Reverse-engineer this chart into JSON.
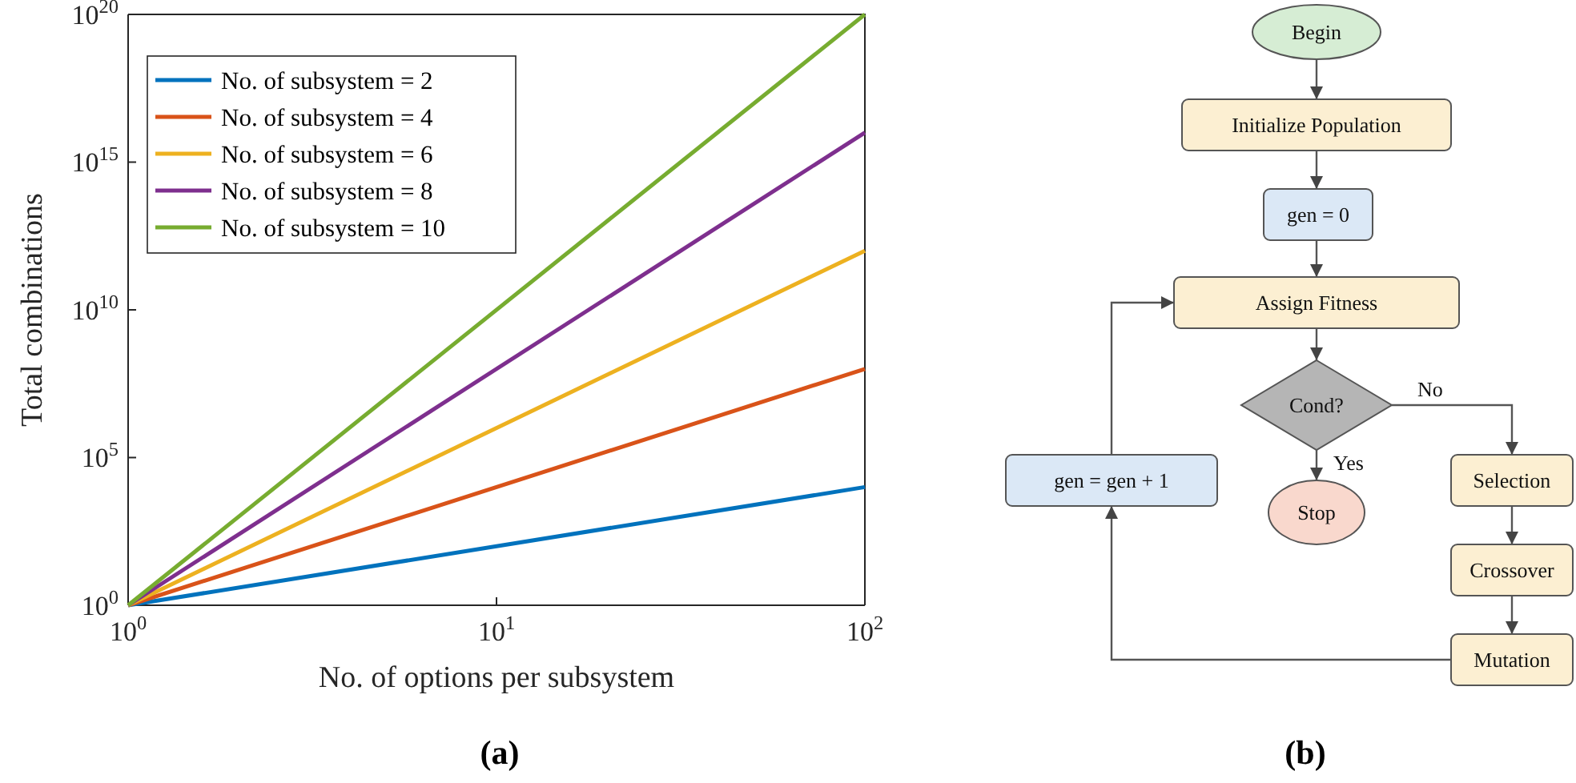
{
  "chart_data": [
    {
      "type": "line",
      "title": "(a)",
      "xlabel": "No. of options per subsystem",
      "ylabel": "Total combinations",
      "log": "xy",
      "x": [
        1,
        100
      ],
      "series": [
        {
          "name": "No. of subsystem = 2",
          "color": "#0072bd",
          "values": [
            1,
            10000
          ]
        },
        {
          "name": "No. of subsystem = 4",
          "color": "#d95319",
          "values": [
            1,
            100000000
          ]
        },
        {
          "name": "No. of subsystem = 6",
          "color": "#edb120",
          "values": [
            1,
            1000000000000
          ]
        },
        {
          "name": "No. of subsystem = 8",
          "color": "#7e2f8e",
          "values": [
            1,
            1e+16
          ]
        },
        {
          "name": "No. of subsystem = 10",
          "color": "#77ac30",
          "values": [
            1,
            1e+20
          ]
        }
      ],
      "xlim": [
        1,
        100
      ],
      "xticks": [
        {
          "value": 1,
          "label": "10$^{0}$"
        },
        {
          "value": 10,
          "label": "10$^{1}$"
        },
        {
          "value": 100,
          "label": "10$^{2}$"
        }
      ],
      "ylim": [
        1,
        1e+20
      ],
      "yticks": [
        {
          "value": 1,
          "label": "10$^{0}$"
        },
        {
          "value": 100000,
          "label": "10$^{5}$"
        },
        {
          "value": 10000000000,
          "label": "10$^{10}$"
        },
        {
          "value": 1000000000000000.0,
          "label": "10$^{15}$"
        },
        {
          "value": 1e+20,
          "label": "10$^{20}$"
        }
      ],
      "legend": "top left",
      "marker": "none",
      "line_style": "solid"
    },
    {
      "type": "other",
      "title": "(b)",
      "annotations": [
        "Begin",
        "Initialize Population",
        "gen = 0",
        "Assign Fitness",
        "Cond?",
        "No",
        "Yes",
        "Stop",
        "Selection",
        "Crossover",
        "Mutation",
        "gen = gen + 1"
      ]
    }
  ]
}
